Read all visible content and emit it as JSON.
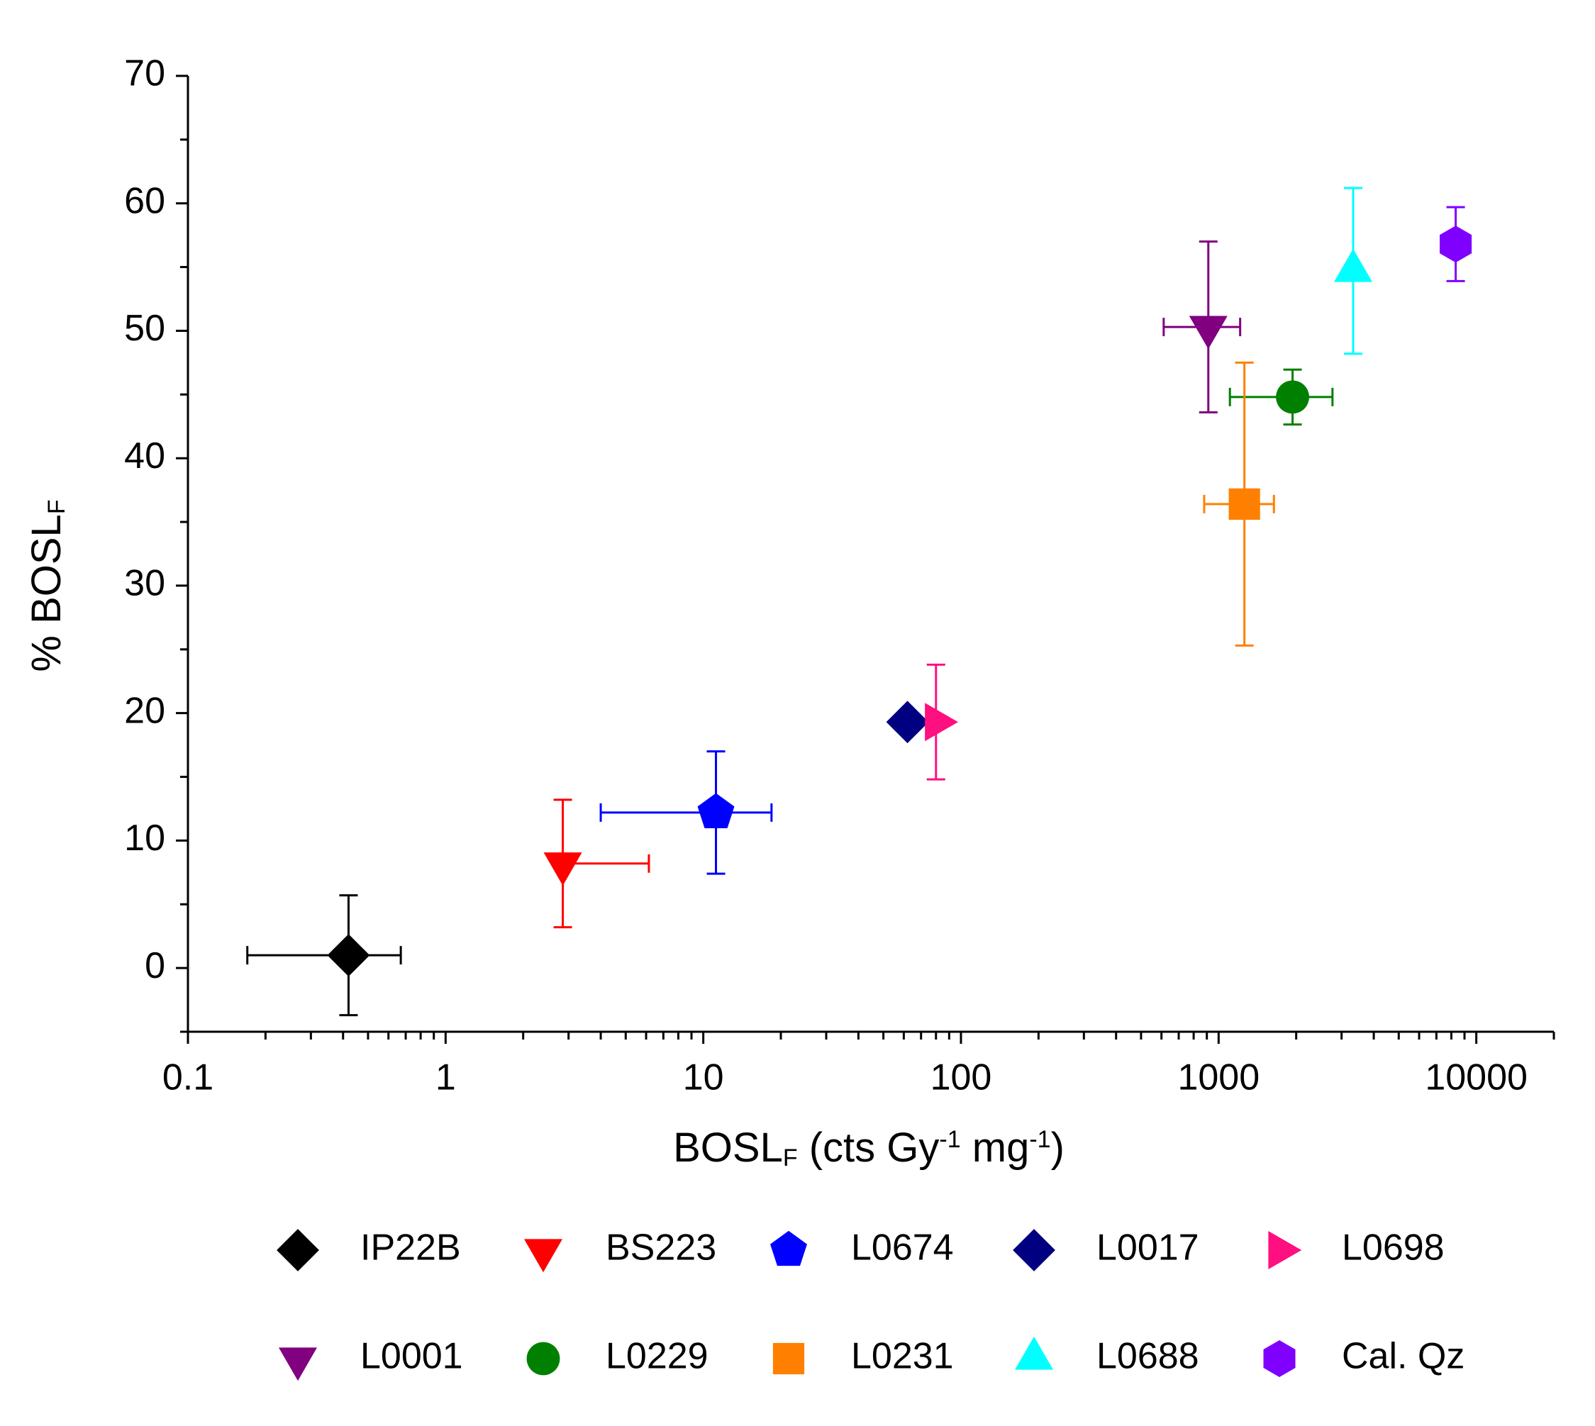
{
  "chart_data": {
    "type": "scatter",
    "xlabel_parts": [
      {
        "text": "BOSL"
      },
      {
        "text": "F",
        "sub": true
      },
      {
        "text": " (cts Gy"
      },
      {
        "text": "-1",
        "sup": true
      },
      {
        "text": " mg"
      },
      {
        "text": "-1",
        "sup": true
      },
      {
        "text": ")"
      }
    ],
    "ylabel_parts": [
      {
        "text": "% BOSL"
      },
      {
        "text": "F",
        "sub": true
      }
    ],
    "xscale": "log",
    "xlim": [
      0.1,
      20000
    ],
    "xticks": [
      0.1,
      1,
      10,
      100,
      1000,
      10000
    ],
    "xminorticks": [
      0.2,
      0.3,
      0.4,
      0.5,
      0.6,
      0.7,
      0.8,
      0.9,
      2,
      3,
      4,
      5,
      6,
      7,
      8,
      9,
      20,
      30,
      40,
      50,
      60,
      70,
      80,
      90,
      200,
      300,
      400,
      500,
      600,
      700,
      800,
      900,
      2000,
      3000,
      4000,
      5000,
      6000,
      7000,
      8000,
      9000,
      20000
    ],
    "ylim": [
      -5,
      70
    ],
    "yticks": [
      0,
      10,
      20,
      30,
      40,
      50,
      60,
      70
    ],
    "yminorticks": [
      -5,
      5,
      15,
      25,
      35,
      45,
      55,
      65
    ],
    "legend": "bottom",
    "series": [
      {
        "name": "IP22B",
        "color": "#000000",
        "marker": "diamond",
        "x": 0.42,
        "y": 1,
        "xerr": 0.25,
        "yerr": 4.7
      },
      {
        "name": "BS223",
        "color": "#ff0000",
        "marker": "triangle-down",
        "x": 2.85,
        "y": 8.2,
        "xerr": 3.3,
        "yerr": 5
      },
      {
        "name": "L0674",
        "color": "#0000ff",
        "marker": "pentagon",
        "x": 11.2,
        "y": 12.2,
        "xerr": 7.2,
        "yerr": 4.8
      },
      {
        "name": "L0017",
        "color": "#000080",
        "marker": "diamond",
        "x": 62,
        "y": 19.3
      },
      {
        "name": "L0698",
        "color": "#ff0f80",
        "marker": "triangle-right",
        "x": 80,
        "y": 19.3,
        "yerr": 4.5
      },
      {
        "name": "L0001",
        "color": "#800080",
        "marker": "triangle-down",
        "x": 912,
        "y": 50.3,
        "xerr": 300,
        "yerr": 6.7
      },
      {
        "name": "L0229",
        "color": "#008000",
        "marker": "circle",
        "x": 1936,
        "y": 44.8,
        "xerr": 830,
        "yerr": 2.15
      },
      {
        "name": "L0231",
        "color": "#ff8000",
        "marker": "square",
        "x": 1259,
        "y": 36.4,
        "xerr": 380,
        "yerr": 11.1
      },
      {
        "name": "L0688",
        "color": "#00ffff",
        "marker": "triangle-up",
        "x": 3327,
        "y": 54.7,
        "yerr": 6.5
      },
      {
        "name": "Cal. Qz",
        "color": "#8000ff",
        "marker": "hexagon",
        "x": 8318,
        "y": 56.8,
        "yerr": 2.9
      }
    ]
  }
}
